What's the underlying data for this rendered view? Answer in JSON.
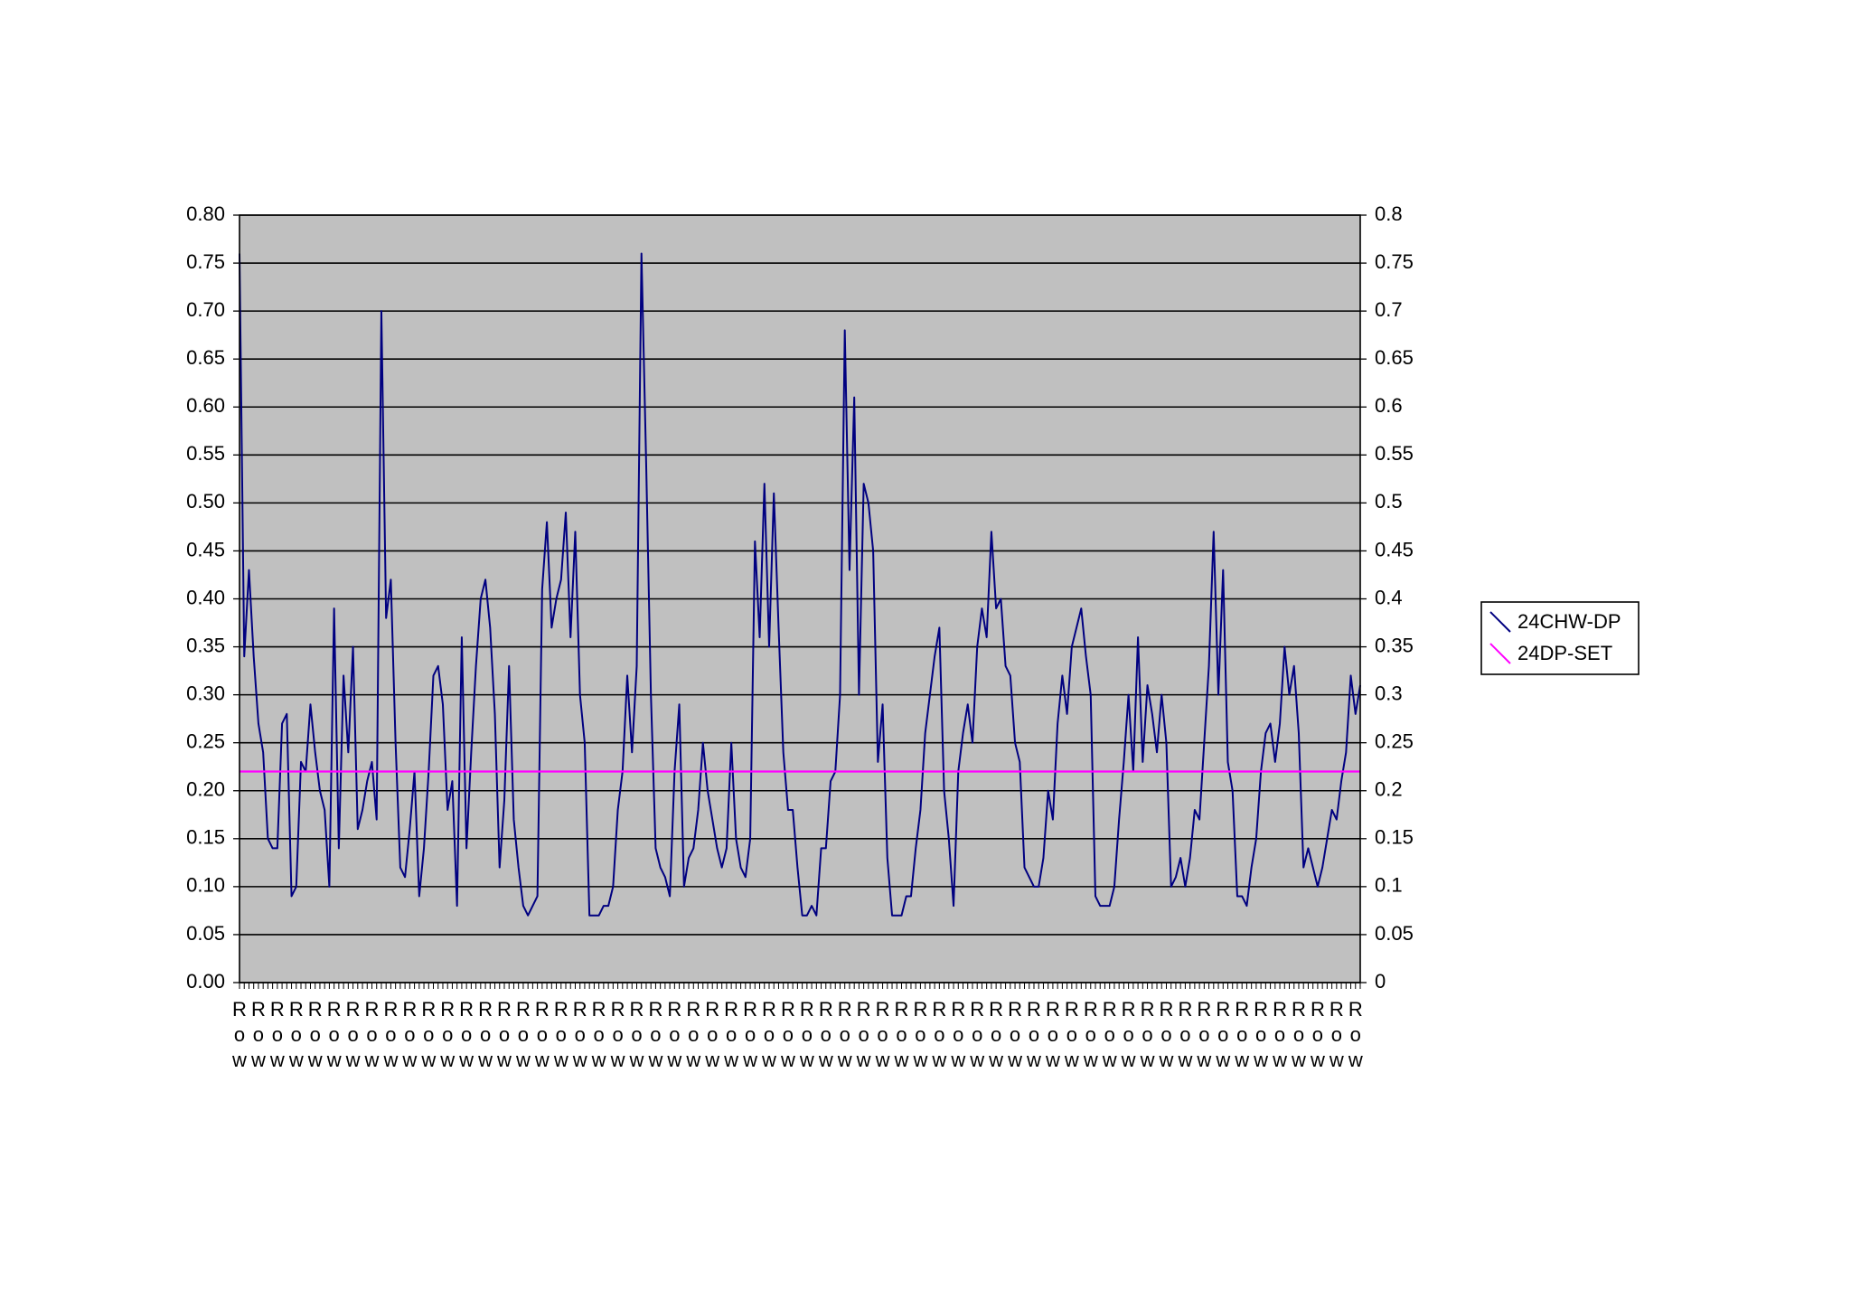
{
  "chart_data": {
    "type": "line",
    "categories": [
      "Row",
      null,
      null,
      null,
      "Row",
      null,
      null,
      null,
      "Row",
      null,
      null,
      null,
      "Row",
      null,
      null,
      null,
      "Row",
      null,
      null,
      null,
      "Row",
      null,
      null,
      null,
      "Row",
      null,
      null,
      null,
      "Row",
      null,
      null,
      null,
      "Row",
      null,
      null,
      null,
      "Row",
      null,
      null,
      null,
      "Row",
      null,
      null,
      null,
      "Row",
      null,
      null,
      null,
      "Row",
      null,
      null,
      null,
      "Row",
      null,
      null,
      null,
      "Row",
      null,
      null,
      null,
      "Row",
      null,
      null,
      null,
      "Row",
      null,
      null,
      null,
      "Row",
      null,
      null,
      null,
      "Row",
      null,
      null,
      null,
      "Row",
      null,
      null,
      null,
      "Row",
      null,
      null,
      null,
      "Row",
      null,
      null,
      null,
      "Row",
      null,
      null,
      null,
      "Row",
      null,
      null,
      null,
      "Row",
      null,
      null,
      null,
      "Row",
      null,
      null,
      null,
      "Row",
      null,
      null,
      null,
      "Row",
      null,
      null,
      null,
      "Row",
      null,
      null,
      null,
      "Row",
      null,
      null,
      null,
      "Row",
      null,
      null,
      null,
      "Row",
      null,
      null,
      null,
      "Row",
      null,
      null,
      null,
      "Row",
      null,
      null,
      null,
      "Row",
      null,
      null,
      null,
      "Row",
      null,
      null,
      null,
      "Row",
      null,
      null,
      null,
      "Row",
      null,
      null,
      null,
      "Row",
      null,
      null,
      null,
      "Row",
      null,
      null,
      null,
      "Row",
      null,
      null,
      null,
      "Row",
      null,
      null,
      null,
      "Row",
      null,
      null,
      null,
      "Row",
      null,
      null,
      null,
      "Row",
      null,
      null,
      null,
      "Row",
      null,
      null,
      null,
      "Row",
      null,
      null,
      null,
      "Row",
      null,
      null,
      null,
      "Row",
      null,
      null,
      null,
      "Row",
      null,
      null,
      null,
      "Row",
      null,
      null,
      null,
      "Row",
      null,
      null,
      null,
      "Row",
      null,
      null,
      null,
      "Row",
      null,
      null,
      null,
      "Row",
      null,
      null,
      null,
      "Row",
      null,
      null,
      null,
      "Row",
      null,
      null,
      null,
      "Row",
      null,
      null,
      null,
      "Row",
      null,
      null,
      null,
      "Row",
      null
    ],
    "series": [
      {
        "name": "24CHW-DP",
        "color": "#000080",
        "values": [
          0.76,
          0.34,
          0.43,
          0.34,
          0.27,
          0.24,
          0.15,
          0.14,
          0.14,
          0.27,
          0.28,
          0.09,
          0.1,
          0.23,
          0.22,
          0.29,
          0.24,
          0.2,
          0.18,
          0.1,
          0.39,
          0.14,
          0.32,
          0.24,
          0.35,
          0.16,
          0.18,
          0.21,
          0.23,
          0.17,
          0.7,
          0.38,
          0.42,
          0.25,
          0.12,
          0.11,
          0.16,
          0.22,
          0.09,
          0.14,
          0.22,
          0.32,
          0.33,
          0.29,
          0.18,
          0.21,
          0.08,
          0.36,
          0.14,
          0.24,
          0.33,
          0.4,
          0.42,
          0.37,
          0.28,
          0.12,
          0.19,
          0.33,
          0.17,
          0.12,
          0.08,
          0.07,
          0.08,
          0.09,
          0.41,
          0.48,
          0.37,
          0.4,
          0.42,
          0.49,
          0.36,
          0.47,
          0.3,
          0.25,
          0.07,
          0.07,
          0.07,
          0.08,
          0.08,
          0.1,
          0.18,
          0.22,
          0.32,
          0.24,
          0.33,
          0.76,
          0.54,
          0.3,
          0.14,
          0.12,
          0.11,
          0.09,
          0.22,
          0.29,
          0.1,
          0.13,
          0.14,
          0.18,
          0.25,
          0.2,
          0.17,
          0.14,
          0.12,
          0.14,
          0.25,
          0.15,
          0.12,
          0.11,
          0.15,
          0.46,
          0.36,
          0.52,
          0.35,
          0.51,
          0.37,
          0.24,
          0.18,
          0.18,
          0.12,
          0.07,
          0.07,
          0.08,
          0.07,
          0.14,
          0.14,
          0.21,
          0.22,
          0.3,
          0.68,
          0.43,
          0.61,
          0.3,
          0.52,
          0.5,
          0.45,
          0.23,
          0.29,
          0.13,
          0.07,
          0.07,
          0.07,
          0.09,
          0.09,
          0.14,
          0.18,
          0.26,
          0.3,
          0.34,
          0.37,
          0.2,
          0.15,
          0.08,
          0.22,
          0.26,
          0.29,
          0.25,
          0.35,
          0.39,
          0.36,
          0.47,
          0.39,
          0.4,
          0.33,
          0.32,
          0.25,
          0.23,
          0.12,
          0.11,
          0.1,
          0.1,
          0.13,
          0.2,
          0.17,
          0.27,
          0.32,
          0.28,
          0.35,
          0.37,
          0.39,
          0.34,
          0.3,
          0.09,
          0.08,
          0.08,
          0.08,
          0.1,
          0.17,
          0.23,
          0.3,
          0.22,
          0.36,
          0.23,
          0.31,
          0.28,
          0.24,
          0.3,
          0.25,
          0.1,
          0.11,
          0.13,
          0.1,
          0.13,
          0.18,
          0.17,
          0.25,
          0.33,
          0.47,
          0.3,
          0.43,
          0.23,
          0.2,
          0.09,
          0.09,
          0.08,
          0.12,
          0.15,
          0.22,
          0.26,
          0.27,
          0.23,
          0.27,
          0.35,
          0.3,
          0.33,
          0.26,
          0.12,
          0.14,
          0.12,
          0.1,
          0.12,
          0.15,
          0.18,
          0.17,
          0.21,
          0.24,
          0.32,
          0.28,
          0.31
        ]
      },
      {
        "name": "24DP-SET",
        "color": "#ff00ff",
        "axis": "y2",
        "values": [
          0.22,
          0.22,
          0.22,
          0.22,
          0.22,
          0.22,
          0.22,
          0.22,
          0.22,
          0.22,
          0.22,
          0.22,
          0.22,
          0.22,
          0.22,
          0.22,
          0.22,
          0.22,
          0.22,
          0.22,
          0.22,
          0.22,
          0.22,
          0.22,
          0.22,
          0.22,
          0.22,
          0.22,
          0.22,
          0.22,
          0.22,
          0.22,
          0.22,
          0.22,
          0.22,
          0.22,
          0.22,
          0.22,
          0.22,
          0.22,
          0.22,
          0.22,
          0.22,
          0.22,
          0.22,
          0.22,
          0.22,
          0.22,
          0.22,
          0.22,
          0.22,
          0.22,
          0.22,
          0.22,
          0.22,
          0.22,
          0.22,
          0.22,
          0.22,
          0.22,
          0.22,
          0.22,
          0.22,
          0.22,
          0.22,
          0.22,
          0.22,
          0.22,
          0.22,
          0.22,
          0.22,
          0.22,
          0.22,
          0.22,
          0.22,
          0.22,
          0.22,
          0.22,
          0.22,
          0.22,
          0.22,
          0.22,
          0.22,
          0.22,
          0.22,
          0.22,
          0.22,
          0.22,
          0.22,
          0.22,
          0.22,
          0.22,
          0.22,
          0.22,
          0.22,
          0.22,
          0.22,
          0.22,
          0.22,
          0.22,
          0.22,
          0.22,
          0.22,
          0.22,
          0.22,
          0.22,
          0.22,
          0.22,
          0.22,
          0.22,
          0.22,
          0.22,
          0.22,
          0.22,
          0.22,
          0.22,
          0.22,
          0.22,
          0.22,
          0.22,
          0.22,
          0.22,
          0.22,
          0.22,
          0.22,
          0.22,
          0.22,
          0.22,
          0.22,
          0.22,
          0.22,
          0.22,
          0.22,
          0.22,
          0.22,
          0.22,
          0.22,
          0.22,
          0.22,
          0.22,
          0.22,
          0.22,
          0.22,
          0.22,
          0.22,
          0.22,
          0.22,
          0.22,
          0.22,
          0.22,
          0.22,
          0.22,
          0.22,
          0.22,
          0.22,
          0.22,
          0.22,
          0.22,
          0.22,
          0.22,
          0.22,
          0.22,
          0.22,
          0.22,
          0.22,
          0.22,
          0.22,
          0.22,
          0.22,
          0.22,
          0.22,
          0.22,
          0.22,
          0.22,
          0.22,
          0.22,
          0.22,
          0.22,
          0.22,
          0.22,
          0.22,
          0.22,
          0.22,
          0.22,
          0.22,
          0.22,
          0.22,
          0.22,
          0.22,
          0.22,
          0.22,
          0.22,
          0.22,
          0.22,
          0.22,
          0.22,
          0.22,
          0.22,
          0.22,
          0.22,
          0.22,
          0.22,
          0.22,
          0.22,
          0.22,
          0.22,
          0.22,
          0.22,
          0.22,
          0.22,
          0.22,
          0.22,
          0.22,
          0.22,
          0.22,
          0.22,
          0.22,
          0.22,
          0.22,
          0.22,
          0.22,
          0.22,
          0.22,
          0.22,
          0.22,
          0.22,
          0.22,
          0.22,
          0.22,
          0.22,
          0.22,
          0.22,
          0.22,
          0.22,
          0.22,
          0.22,
          0.22,
          0.22
        ]
      }
    ],
    "ylim": [
      0,
      0.8
    ],
    "yticks": [
      {
        "value": 0,
        "label": "0.00"
      },
      0.05,
      {
        "value": 0.1,
        "label": "0.10"
      },
      0.15,
      {
        "value": 0.2,
        "label": "0.20"
      },
      0.25,
      {
        "value": 0.3,
        "label": "0.30"
      },
      0.35,
      {
        "value": 0.4,
        "label": "0.40"
      },
      0.45,
      {
        "value": 0.5,
        "label": "0.50"
      },
      0.55,
      {
        "value": 0.6,
        "label": "0.60"
      },
      0.65,
      {
        "value": 0.7,
        "label": "0.70"
      },
      0.75,
      {
        "value": 0.8,
        "label": "0.80"
      }
    ],
    "y2lim": [
      0,
      0.8
    ],
    "y2ticks": [
      0,
      0.05,
      0.1,
      0.15,
      0.2,
      0.25,
      0.3,
      0.35,
      0.4,
      0.45,
      0.5,
      0.55,
      0.6,
      0.65,
      0.7,
      0.75,
      0.8
    ],
    "grid": true,
    "plot_background": "#c0c0c0",
    "legend": "right"
  }
}
